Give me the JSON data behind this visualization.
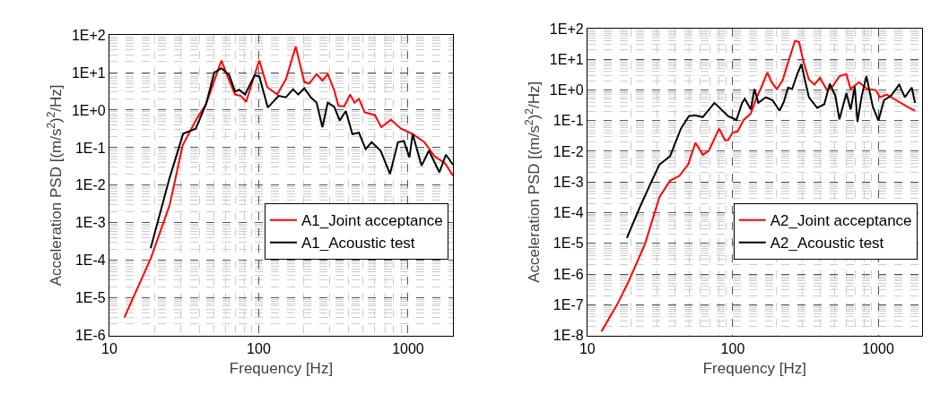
{
  "chart_data": [
    {
      "type": "line",
      "xlabel": "Frequency [Hz]",
      "ylabel": "Acceleration PSD [(m/s$^{2}$)$^{2}$/Hz]",
      "log": "xy",
      "grid": true,
      "legend": "bottom right",
      "line_style": "solid",
      "xlim": [
        10,
        2000
      ],
      "xticks": [
        10,
        100,
        1000
      ],
      "ylim": [
        1e-06,
        100
      ],
      "yticks": [
        {
          "value": 1e-06,
          "label": "1E-6"
        },
        {
          "value": 1e-05,
          "label": "1E-5"
        },
        {
          "value": 0.0001,
          "label": "1E-4"
        },
        {
          "value": 0.001,
          "label": "1E-3"
        },
        {
          "value": 0.01,
          "label": "1E-2"
        },
        {
          "value": 0.1,
          "label": "1E-1"
        },
        {
          "value": 1,
          "label": "1E+0"
        },
        {
          "value": 10,
          "label": "1E+1"
        },
        {
          "value": 100,
          "label": "1E+2"
        }
      ],
      "series": [
        {
          "name": "A1_Joint acceptance",
          "color": "#ff0000",
          "x": [
            12.6,
            18.9,
            25.3,
            31,
            38.8,
            44.4,
            50.8,
            56.3,
            62,
            69.5,
            76,
            82.4,
            93,
            101,
            114,
            133,
            152,
            177,
            202,
            218,
            244,
            267,
            290,
            320,
            342,
            374,
            409,
            438,
            469,
            512,
            600,
            662,
            768,
            898,
            1074,
            1285,
            1504,
            1761,
            2000
          ],
          "values": [
            3e-06,
            0.00011,
            0.0029,
            0.117,
            0.63,
            1.45,
            6.6,
            21,
            7.8,
            2.6,
            2.4,
            1.66,
            7.8,
            21,
            4.1,
            2.6,
            6.6,
            49,
            5.6,
            5.1,
            9.1,
            6.1,
            9.1,
            3.4,
            1.3,
            1.26,
            2.6,
            1.58,
            2.0,
            0.87,
            0.74,
            0.35,
            0.55,
            0.32,
            0.23,
            0.14,
            0.059,
            0.039,
            0.018
          ]
        },
        {
          "name": "A1_Acoustic test",
          "color": "#000000",
          "x": [
            18.9,
            25.3,
            31.2,
            37.9,
            44.4,
            50.4,
            56.3,
            63.6,
            69.5,
            74,
            81,
            94,
            101,
            115,
            136,
            152,
            170,
            184,
            202,
            223,
            244,
            267,
            290,
            320,
            349,
            383,
            424,
            469,
            520,
            570,
            655,
            757,
            856,
            938,
            1021,
            1074,
            1231,
            1379,
            1621,
            1792,
            2000
          ],
          "values": [
            0.00021,
            0.0155,
            0.235,
            0.32,
            1.45,
            10,
            13,
            8.5,
            3.1,
            3.5,
            2.6,
            8.5,
            7.8,
            1.17,
            2.4,
            2.2,
            3.6,
            2.6,
            3.8,
            2.2,
            1.58,
            0.35,
            1.58,
            1.23,
            0.53,
            0.95,
            0.23,
            0.25,
            0.091,
            0.14,
            0.083,
            0.02,
            0.14,
            0.15,
            0.055,
            0.23,
            0.033,
            0.083,
            0.022,
            0.065,
            0.035
          ]
        }
      ]
    },
    {
      "type": "line",
      "xlabel": "Frequency [Hz]",
      "ylabel": "Acceleration PSD [(m/s$^{2}$)$^{2}$/Hz]",
      "log": "xy",
      "grid": true,
      "legend": "bottom right",
      "line_style": "solid",
      "xlim": [
        10,
        2000
      ],
      "xticks": [
        10,
        100,
        1000
      ],
      "ylim": [
        1e-08,
        100
      ],
      "yticks": [
        {
          "value": 1e-08,
          "label": "1E-8"
        },
        {
          "value": 1e-07,
          "label": "1E-7"
        },
        {
          "value": 1e-06,
          "label": "1E-6"
        },
        {
          "value": 1e-05,
          "label": "1E-5"
        },
        {
          "value": 0.0001,
          "label": "1E-4"
        },
        {
          "value": 0.001,
          "label": "1E-3"
        },
        {
          "value": 0.01,
          "label": "1E-2"
        },
        {
          "value": 0.1,
          "label": "1E-1"
        },
        {
          "value": 1,
          "label": "1E+0"
        },
        {
          "value": 10,
          "label": "1E+1"
        },
        {
          "value": 100,
          "label": "1E+2"
        }
      ],
      "series": [
        {
          "name": "A2_Joint acceptance",
          "color": "#ff0000",
          "x": [
            12.5,
            16,
            19.1,
            24.9,
            31.3,
            37,
            43,
            49.3,
            55.4,
            62.2,
            68.5,
            76.4,
            80.6,
            88.4,
            93,
            99.5,
            108,
            119,
            133,
            145,
            157,
            173,
            185,
            201,
            220,
            235,
            268,
            286,
            306,
            334,
            365,
            398,
            445,
            486,
            542,
            605,
            647,
            738,
            842,
            962,
            1028,
            1146,
            1367,
            1595,
            1795
          ],
          "values": [
            1.35e-08,
            1e-07,
            5.4e-07,
            9.5e-06,
            0.00032,
            0.0011,
            0.0016,
            0.0037,
            0.019,
            0.0077,
            0.0105,
            0.032,
            0.055,
            0.023,
            0.023,
            0.04,
            0.045,
            0.105,
            0.17,
            0.52,
            1.2,
            3.7,
            1.8,
            1.07,
            2.0,
            5.6,
            40,
            36,
            8.5,
            2.2,
            1.5,
            2.5,
            0.98,
            1.3,
            2.8,
            3.3,
            1.07,
            1.8,
            1.07,
            0.99,
            0.58,
            0.71,
            0.43,
            0.28,
            0.21
          ]
        },
        {
          "name": "A2_Acoustic test",
          "color": "#000000",
          "x": [
            18.7,
            22.8,
            27.2,
            31.3,
            37,
            44,
            49.9,
            55,
            62.2,
            74.8,
            93,
            106,
            116,
            121,
            133,
            141,
            150,
            169,
            188,
            210,
            225,
            240,
            256,
            278,
            297,
            313,
            334,
            381,
            426,
            465,
            508,
            542,
            605,
            647,
            691,
            721,
            771,
            831,
            920,
            1005,
            1096,
            1224,
            1396,
            1527,
            1703,
            1795
          ],
          "values": [
            1.5e-05,
            0.00014,
            0.00089,
            0.0037,
            0.0069,
            0.055,
            0.14,
            0.15,
            0.13,
            0.38,
            0.14,
            0.105,
            0.38,
            0.52,
            0.23,
            1.07,
            0.38,
            0.58,
            0.46,
            0.21,
            0.42,
            1.2,
            1.07,
            3.3,
            6.9,
            2.2,
            0.58,
            0.26,
            0.34,
            1.6,
            0.64,
            0.11,
            0.79,
            0.23,
            1.3,
            0.091,
            0.64,
            2.8,
            0.28,
            0.1,
            0.46,
            0.64,
            1.5,
            0.58,
            1.2,
            0.38
          ]
        }
      ]
    }
  ]
}
